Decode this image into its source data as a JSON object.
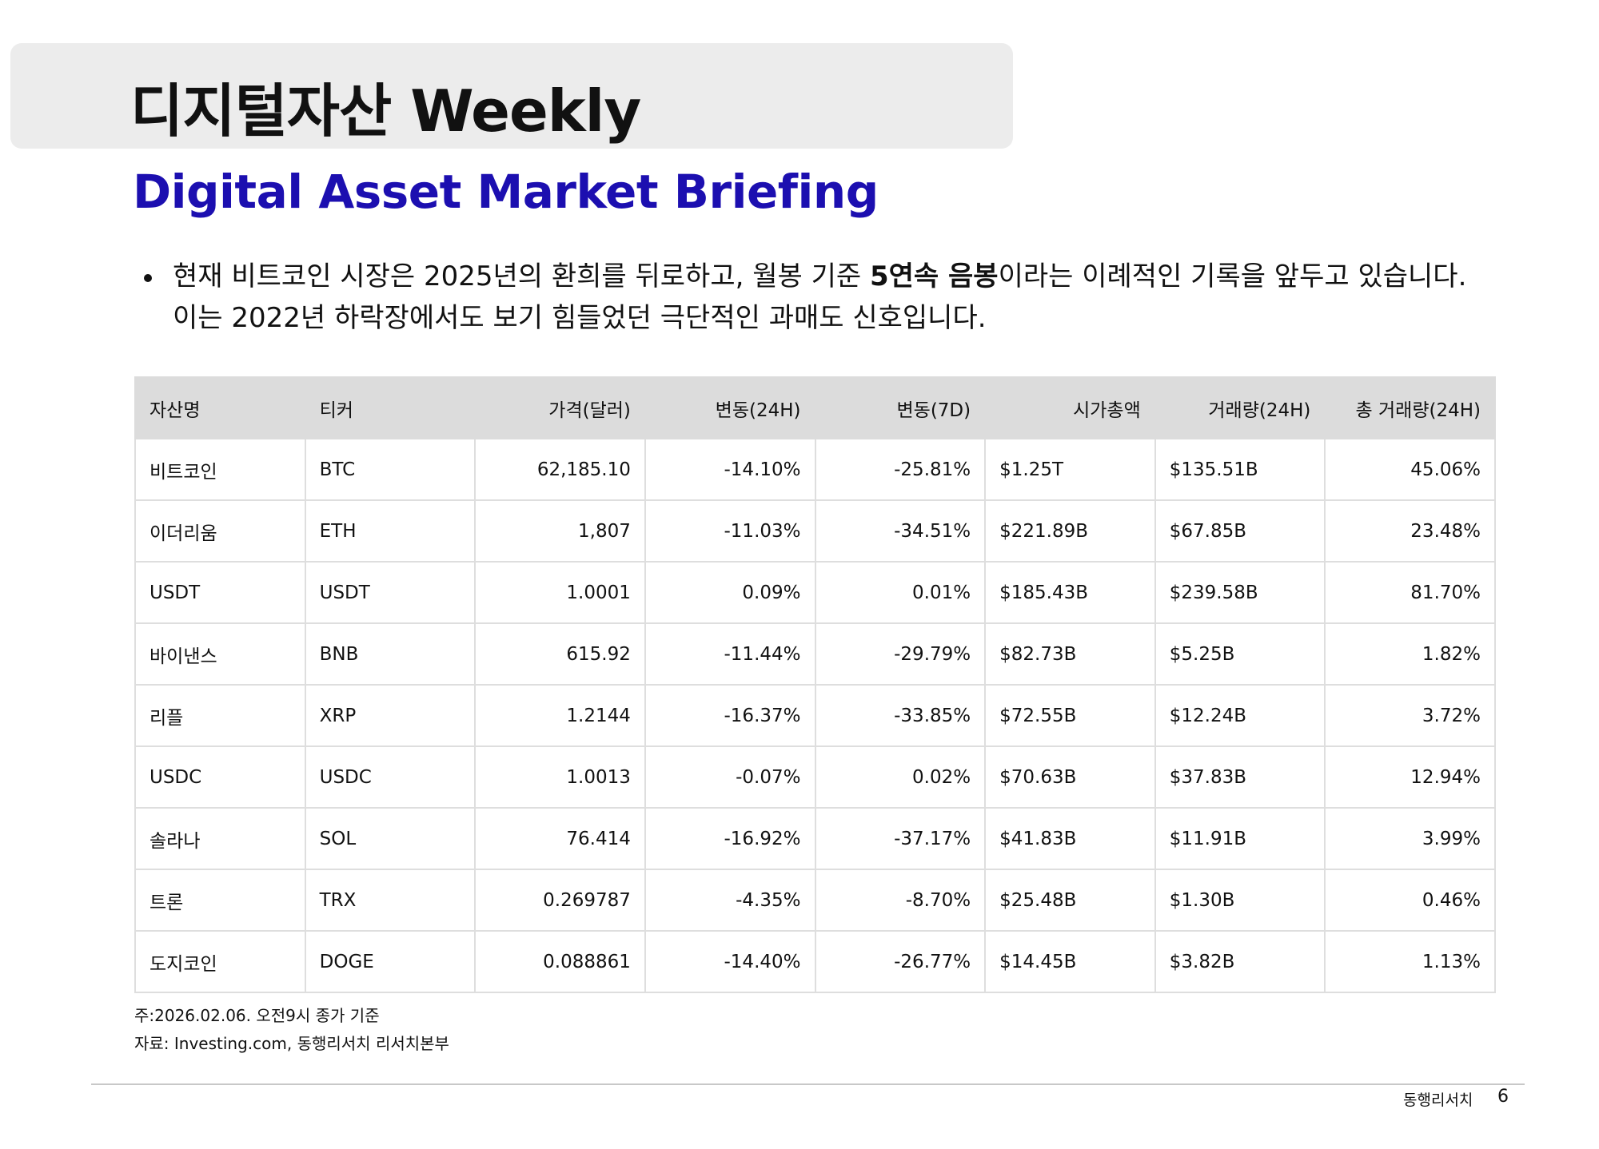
{
  "header": {
    "title": "디지털자산 Weekly",
    "subtitle": "Digital Asset Market Briefing"
  },
  "bullet": {
    "before": "현재 비트코인 시장은 2025년의 환희를 뒤로하고, 월봉 기준 ",
    "bold": "5연속 음봉",
    "after": "이라는 이례적인 기록을 앞두고 있습니다. 이는 2022년 하락장에서도 보기 힘들었던 극단적인 과매도 신호입니다."
  },
  "table": {
    "columns": [
      "자산명",
      "티커",
      "가격(달러)",
      "변동(24H)",
      "변동(7D)",
      "시가총액",
      "거래량(24H)",
      "총 거래량(24H)"
    ],
    "rows": [
      [
        "비트코인",
        "BTC",
        "62,185.10",
        "-14.10%",
        "-25.81%",
        "$1.25T",
        "$135.51B",
        "45.06%"
      ],
      [
        "이더리움",
        "ETH",
        "1,807",
        "-11.03%",
        "-34.51%",
        "$221.89B",
        "$67.85B",
        "23.48%"
      ],
      [
        "USDT",
        "USDT",
        "1.0001",
        "0.09%",
        "0.01%",
        "$185.43B",
        "$239.58B",
        "81.70%"
      ],
      [
        "바이낸스",
        "BNB",
        "615.92",
        "-11.44%",
        "-29.79%",
        "$82.73B",
        "$5.25B",
        "1.82%"
      ],
      [
        "리플",
        "XRP",
        "1.2144",
        "-16.37%",
        "-33.85%",
        "$72.55B",
        "$12.24B",
        "3.72%"
      ],
      [
        "USDC",
        "USDC",
        "1.0013",
        "-0.07%",
        "0.02%",
        "$70.63B",
        "$37.83B",
        "12.94%"
      ],
      [
        "솔라나",
        "SOL",
        "76.414",
        "-16.92%",
        "-37.17%",
        "$41.83B",
        "$11.91B",
        "3.99%"
      ],
      [
        "트론",
        "TRX",
        "0.269787",
        "-4.35%",
        "-8.70%",
        "$25.48B",
        "$1.30B",
        "0.46%"
      ],
      [
        "도지코인",
        "DOGE",
        "0.088861",
        "-14.40%",
        "-26.77%",
        "$14.45B",
        "$3.82B",
        "1.13%"
      ]
    ]
  },
  "notes": [
    "주:2026.02.06. 오전9시 종가 기준",
    "자료: Investing.com, 동행리서치 리서치본부"
  ],
  "footer": {
    "brand": "동행리서치",
    "page": "6"
  }
}
